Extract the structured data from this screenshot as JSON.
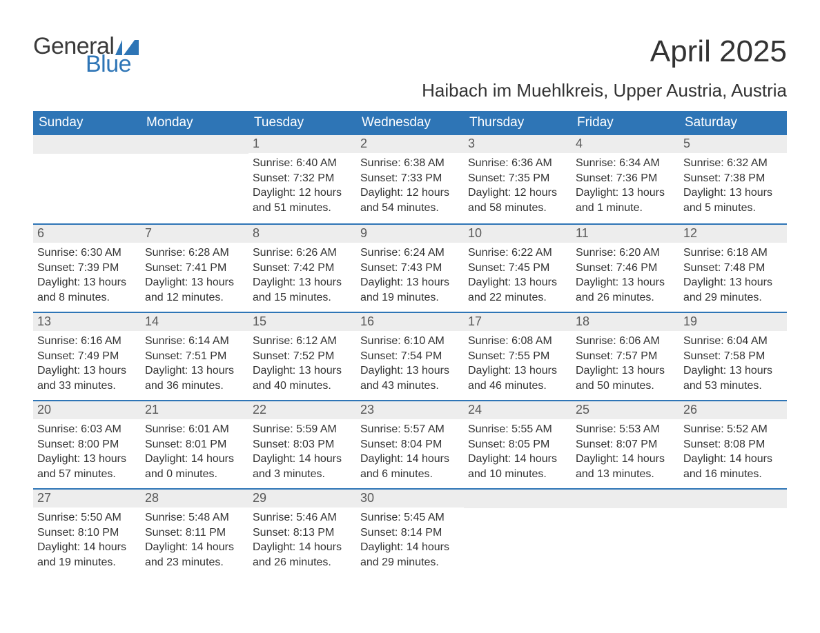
{
  "brand": {
    "general": "General",
    "blue": "Blue",
    "mark_color": "#2e75b6"
  },
  "title": "April 2025",
  "subtitle": "Haibach im Muehlkreis, Upper Austria, Austria",
  "colors": {
    "header_bg": "#2e75b6",
    "header_text": "#ffffff",
    "daynum_bg": "#ededed",
    "daynum_text": "#595959",
    "body_text": "#333333",
    "week_border": "#2e75b6"
  },
  "days_of_week": [
    "Sunday",
    "Monday",
    "Tuesday",
    "Wednesday",
    "Thursday",
    "Friday",
    "Saturday"
  ],
  "weeks": [
    [
      {
        "num": "",
        "sunrise": "",
        "sunset": "",
        "daylight": ""
      },
      {
        "num": "",
        "sunrise": "",
        "sunset": "",
        "daylight": ""
      },
      {
        "num": "1",
        "sunrise": "Sunrise: 6:40 AM",
        "sunset": "Sunset: 7:32 PM",
        "daylight": "Daylight: 12 hours and 51 minutes."
      },
      {
        "num": "2",
        "sunrise": "Sunrise: 6:38 AM",
        "sunset": "Sunset: 7:33 PM",
        "daylight": "Daylight: 12 hours and 54 minutes."
      },
      {
        "num": "3",
        "sunrise": "Sunrise: 6:36 AM",
        "sunset": "Sunset: 7:35 PM",
        "daylight": "Daylight: 12 hours and 58 minutes."
      },
      {
        "num": "4",
        "sunrise": "Sunrise: 6:34 AM",
        "sunset": "Sunset: 7:36 PM",
        "daylight": "Daylight: 13 hours and 1 minute."
      },
      {
        "num": "5",
        "sunrise": "Sunrise: 6:32 AM",
        "sunset": "Sunset: 7:38 PM",
        "daylight": "Daylight: 13 hours and 5 minutes."
      }
    ],
    [
      {
        "num": "6",
        "sunrise": "Sunrise: 6:30 AM",
        "sunset": "Sunset: 7:39 PM",
        "daylight": "Daylight: 13 hours and 8 minutes."
      },
      {
        "num": "7",
        "sunrise": "Sunrise: 6:28 AM",
        "sunset": "Sunset: 7:41 PM",
        "daylight": "Daylight: 13 hours and 12 minutes."
      },
      {
        "num": "8",
        "sunrise": "Sunrise: 6:26 AM",
        "sunset": "Sunset: 7:42 PM",
        "daylight": "Daylight: 13 hours and 15 minutes."
      },
      {
        "num": "9",
        "sunrise": "Sunrise: 6:24 AM",
        "sunset": "Sunset: 7:43 PM",
        "daylight": "Daylight: 13 hours and 19 minutes."
      },
      {
        "num": "10",
        "sunrise": "Sunrise: 6:22 AM",
        "sunset": "Sunset: 7:45 PM",
        "daylight": "Daylight: 13 hours and 22 minutes."
      },
      {
        "num": "11",
        "sunrise": "Sunrise: 6:20 AM",
        "sunset": "Sunset: 7:46 PM",
        "daylight": "Daylight: 13 hours and 26 minutes."
      },
      {
        "num": "12",
        "sunrise": "Sunrise: 6:18 AM",
        "sunset": "Sunset: 7:48 PM",
        "daylight": "Daylight: 13 hours and 29 minutes."
      }
    ],
    [
      {
        "num": "13",
        "sunrise": "Sunrise: 6:16 AM",
        "sunset": "Sunset: 7:49 PM",
        "daylight": "Daylight: 13 hours and 33 minutes."
      },
      {
        "num": "14",
        "sunrise": "Sunrise: 6:14 AM",
        "sunset": "Sunset: 7:51 PM",
        "daylight": "Daylight: 13 hours and 36 minutes."
      },
      {
        "num": "15",
        "sunrise": "Sunrise: 6:12 AM",
        "sunset": "Sunset: 7:52 PM",
        "daylight": "Daylight: 13 hours and 40 minutes."
      },
      {
        "num": "16",
        "sunrise": "Sunrise: 6:10 AM",
        "sunset": "Sunset: 7:54 PM",
        "daylight": "Daylight: 13 hours and 43 minutes."
      },
      {
        "num": "17",
        "sunrise": "Sunrise: 6:08 AM",
        "sunset": "Sunset: 7:55 PM",
        "daylight": "Daylight: 13 hours and 46 minutes."
      },
      {
        "num": "18",
        "sunrise": "Sunrise: 6:06 AM",
        "sunset": "Sunset: 7:57 PM",
        "daylight": "Daylight: 13 hours and 50 minutes."
      },
      {
        "num": "19",
        "sunrise": "Sunrise: 6:04 AM",
        "sunset": "Sunset: 7:58 PM",
        "daylight": "Daylight: 13 hours and 53 minutes."
      }
    ],
    [
      {
        "num": "20",
        "sunrise": "Sunrise: 6:03 AM",
        "sunset": "Sunset: 8:00 PM",
        "daylight": "Daylight: 13 hours and 57 minutes."
      },
      {
        "num": "21",
        "sunrise": "Sunrise: 6:01 AM",
        "sunset": "Sunset: 8:01 PM",
        "daylight": "Daylight: 14 hours and 0 minutes."
      },
      {
        "num": "22",
        "sunrise": "Sunrise: 5:59 AM",
        "sunset": "Sunset: 8:03 PM",
        "daylight": "Daylight: 14 hours and 3 minutes."
      },
      {
        "num": "23",
        "sunrise": "Sunrise: 5:57 AM",
        "sunset": "Sunset: 8:04 PM",
        "daylight": "Daylight: 14 hours and 6 minutes."
      },
      {
        "num": "24",
        "sunrise": "Sunrise: 5:55 AM",
        "sunset": "Sunset: 8:05 PM",
        "daylight": "Daylight: 14 hours and 10 minutes."
      },
      {
        "num": "25",
        "sunrise": "Sunrise: 5:53 AM",
        "sunset": "Sunset: 8:07 PM",
        "daylight": "Daylight: 14 hours and 13 minutes."
      },
      {
        "num": "26",
        "sunrise": "Sunrise: 5:52 AM",
        "sunset": "Sunset: 8:08 PM",
        "daylight": "Daylight: 14 hours and 16 minutes."
      }
    ],
    [
      {
        "num": "27",
        "sunrise": "Sunrise: 5:50 AM",
        "sunset": "Sunset: 8:10 PM",
        "daylight": "Daylight: 14 hours and 19 minutes."
      },
      {
        "num": "28",
        "sunrise": "Sunrise: 5:48 AM",
        "sunset": "Sunset: 8:11 PM",
        "daylight": "Daylight: 14 hours and 23 minutes."
      },
      {
        "num": "29",
        "sunrise": "Sunrise: 5:46 AM",
        "sunset": "Sunset: 8:13 PM",
        "daylight": "Daylight: 14 hours and 26 minutes."
      },
      {
        "num": "30",
        "sunrise": "Sunrise: 5:45 AM",
        "sunset": "Sunset: 8:14 PM",
        "daylight": "Daylight: 14 hours and 29 minutes."
      },
      {
        "num": "",
        "sunrise": "",
        "sunset": "",
        "daylight": ""
      },
      {
        "num": "",
        "sunrise": "",
        "sunset": "",
        "daylight": ""
      },
      {
        "num": "",
        "sunrise": "",
        "sunset": "",
        "daylight": ""
      }
    ]
  ]
}
